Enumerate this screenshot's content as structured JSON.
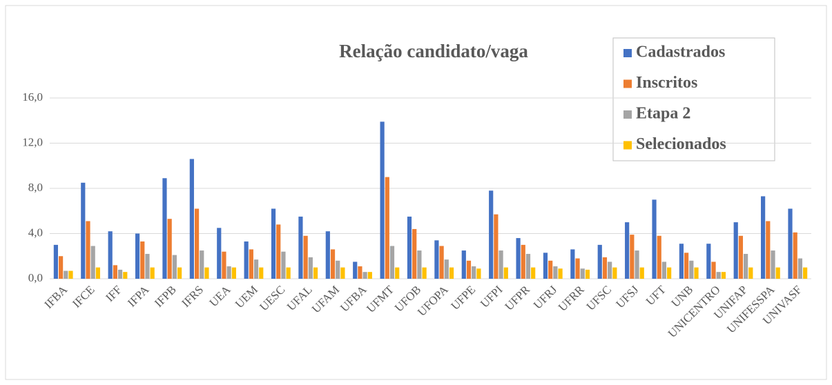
{
  "chart_data": {
    "type": "bar",
    "title": "Relação candidato/vaga",
    "categories": [
      "IFBA",
      "IFCE",
      "IFF",
      "IFPA",
      "IFPB",
      "IFRS",
      "UEA",
      "UEM",
      "UESC",
      "UFAL",
      "UFAM",
      "UFBA",
      "UFMT",
      "UFOB",
      "UFOPA",
      "UFPE",
      "UFPI",
      "UFPR",
      "UFRJ",
      "UFRR",
      "UFSC",
      "UFSJ",
      "UFT",
      "UNB",
      "UNICENTRO",
      "UNIFAP",
      "UNIFESSPA",
      "UNIVASF"
    ],
    "series": [
      {
        "name": "Cadastrados",
        "color": "#4472c4",
        "values": [
          3.0,
          8.5,
          4.2,
          4.0,
          8.9,
          10.6,
          4.5,
          3.3,
          6.2,
          5.5,
          4.2,
          1.5,
          13.9,
          5.5,
          3.4,
          2.5,
          7.8,
          3.6,
          2.3,
          2.6,
          3.0,
          5.0,
          7.0,
          3.1,
          3.1,
          5.0,
          7.3,
          6.2
        ]
      },
      {
        "name": "Inscritos",
        "color": "#ed7d31",
        "values": [
          2.0,
          5.1,
          1.2,
          3.3,
          5.3,
          6.2,
          2.4,
          2.6,
          4.8,
          3.8,
          2.6,
          1.1,
          9.0,
          4.4,
          2.9,
          1.6,
          5.7,
          3.0,
          1.6,
          1.8,
          1.9,
          3.9,
          3.8,
          2.3,
          1.5,
          3.8,
          5.1,
          4.1
        ]
      },
      {
        "name": "Etapa 2",
        "color": "#a5a5a5",
        "values": [
          0.7,
          2.9,
          0.8,
          2.2,
          2.1,
          2.5,
          1.1,
          1.7,
          2.4,
          1.9,
          1.6,
          0.6,
          2.9,
          2.5,
          1.7,
          1.1,
          2.5,
          2.2,
          1.1,
          0.9,
          1.5,
          2.5,
          1.5,
          1.6,
          0.6,
          2.2,
          2.5,
          1.8
        ]
      },
      {
        "name": "Selecionados",
        "color": "#ffc000",
        "values": [
          0.7,
          1.0,
          0.6,
          1.0,
          1.0,
          1.0,
          1.0,
          1.0,
          1.0,
          1.0,
          1.0,
          0.6,
          1.0,
          1.0,
          1.0,
          0.9,
          1.0,
          1.0,
          0.9,
          0.8,
          1.0,
          1.0,
          1.0,
          1.0,
          0.6,
          1.0,
          1.0,
          1.0
        ]
      }
    ],
    "ylim": [
      0,
      16
    ],
    "yticks": [
      {
        "value": 0,
        "label": "0,0"
      },
      {
        "value": 4,
        "label": "4,0"
      },
      {
        "value": 8,
        "label": "8,0"
      },
      {
        "value": 12,
        "label": "12,0"
      },
      {
        "value": 16,
        "label": "16,0"
      }
    ],
    "grid": true,
    "legend": "top-right"
  }
}
